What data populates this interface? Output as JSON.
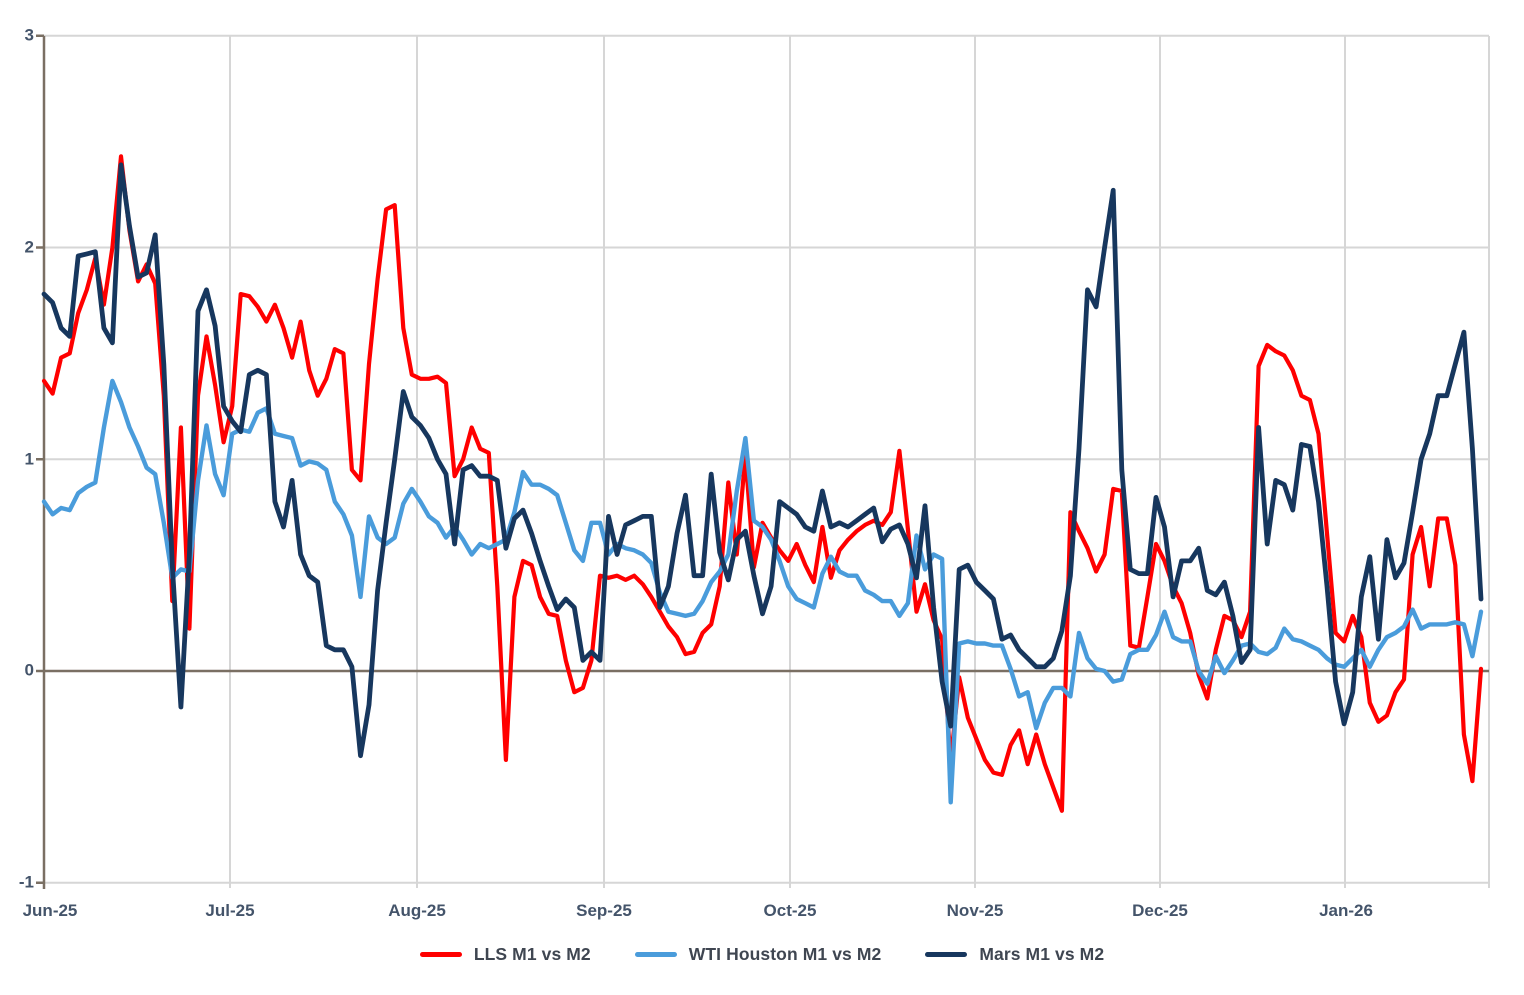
{
  "chart": {
    "y_ticks": [
      "3",
      "2",
      "1",
      "0",
      "-1"
    ],
    "x_labels": [
      "Jun-25",
      "Jul-25",
      "Aug-25",
      "Sep-25",
      "Oct-25",
      "Nov-25",
      "Dec-25",
      "Jan-26"
    ],
    "style": {
      "gridline_color": "#D6D6D6",
      "axis_color": "#7A6F63",
      "zero_line_color": "#7A6F63",
      "axis_label_color": "#44546A",
      "legend_text_color": "#3F4651",
      "background": "#FFFFFF"
    }
  },
  "chart_data": {
    "type": "line",
    "title": "",
    "xlabel": "",
    "ylabel": "",
    "ylim": [
      -1,
      3
    ],
    "x_axis_labels": [
      "Jun-25",
      "Jul-25",
      "Aug-25",
      "Sep-25",
      "Oct-25",
      "Nov-25",
      "Dec-25",
      "Jan-26"
    ],
    "grid": true,
    "legend_position": "bottom",
    "frequency": "daily (weekdays), Jun 2025 through late Jan 2026",
    "series": [
      {
        "name": "LLS M1 vs M2",
        "color": "#FF0000",
        "values": [
          1.37,
          1.31,
          1.48,
          1.5,
          1.69,
          1.8,
          1.95,
          1.73,
          2.0,
          2.43,
          2.08,
          1.84,
          1.92,
          1.83,
          1.3,
          0.33,
          1.15,
          0.2,
          1.3,
          1.58,
          1.35,
          1.08,
          1.25,
          1.78,
          1.77,
          1.72,
          1.65,
          1.73,
          1.62,
          1.48,
          1.65,
          1.42,
          1.3,
          1.38,
          1.52,
          1.5,
          0.95,
          0.9,
          1.45,
          1.85,
          2.18,
          2.2,
          1.62,
          1.4,
          1.38,
          1.38,
          1.39,
          1.36,
          0.92,
          1.0,
          1.15,
          1.05,
          1.03,
          0.4,
          -0.42,
          0.35,
          0.52,
          0.5,
          0.35,
          0.27,
          0.26,
          0.05,
          -0.1,
          -0.08,
          0.05,
          0.45,
          0.44,
          0.45,
          0.43,
          0.45,
          0.41,
          0.35,
          0.28,
          0.21,
          0.16,
          0.08,
          0.09,
          0.18,
          0.22,
          0.4,
          0.89,
          0.55,
          1.02,
          0.49,
          0.7,
          0.63,
          0.57,
          0.52,
          0.6,
          0.5,
          0.42,
          0.68,
          0.44,
          0.57,
          0.62,
          0.66,
          0.69,
          0.71,
          0.69,
          0.75,
          1.04,
          0.67,
          0.28,
          0.41,
          0.24,
          0.15,
          -0.43,
          -0.03,
          -0.22,
          -0.32,
          -0.42,
          -0.48,
          -0.49,
          -0.35,
          -0.28,
          -0.44,
          -0.3,
          -0.44,
          -0.55,
          -0.66,
          0.75,
          0.66,
          0.58,
          0.47,
          0.55,
          0.86,
          0.85,
          0.12,
          0.11,
          0.35,
          0.6,
          0.52,
          0.4,
          0.32,
          0.18,
          -0.02,
          -0.13,
          0.1,
          0.26,
          0.24,
          0.16,
          0.28,
          1.44,
          1.54,
          1.51,
          1.49,
          1.42,
          1.3,
          1.28,
          1.12,
          0.65,
          0.18,
          0.14,
          0.26,
          0.16,
          -0.15,
          -0.24,
          -0.21,
          -0.1,
          -0.04,
          0.55,
          0.68,
          0.4,
          0.72,
          0.72,
          0.5,
          -0.3,
          -0.52,
          0.01
        ]
      },
      {
        "name": "WTI Houston M1 vs M2",
        "color": "#4A9CDB",
        "values": [
          0.8,
          0.74,
          0.77,
          0.76,
          0.84,
          0.87,
          0.89,
          1.15,
          1.37,
          1.27,
          1.15,
          1.06,
          0.96,
          0.93,
          0.7,
          0.44,
          0.48,
          0.47,
          0.9,
          1.16,
          0.93,
          0.83,
          1.12,
          1.14,
          1.13,
          1.22,
          1.24,
          1.12,
          1.11,
          1.1,
          0.97,
          0.99,
          0.98,
          0.95,
          0.8,
          0.74,
          0.64,
          0.35,
          0.73,
          0.63,
          0.6,
          0.63,
          0.79,
          0.86,
          0.8,
          0.73,
          0.7,
          0.63,
          0.68,
          0.62,
          0.55,
          0.6,
          0.58,
          0.6,
          0.62,
          0.75,
          0.94,
          0.88,
          0.88,
          0.86,
          0.83,
          0.7,
          0.57,
          0.52,
          0.7,
          0.7,
          0.55,
          0.6,
          0.58,
          0.57,
          0.55,
          0.51,
          0.37,
          0.28,
          0.27,
          0.26,
          0.27,
          0.33,
          0.42,
          0.47,
          0.55,
          0.85,
          1.1,
          0.71,
          0.68,
          0.62,
          0.52,
          0.4,
          0.34,
          0.32,
          0.3,
          0.46,
          0.54,
          0.47,
          0.45,
          0.45,
          0.38,
          0.36,
          0.33,
          0.33,
          0.26,
          0.32,
          0.64,
          0.48,
          0.55,
          0.53,
          -0.62,
          0.13,
          0.14,
          0.13,
          0.13,
          0.12,
          0.12,
          0.01,
          -0.12,
          -0.1,
          -0.27,
          -0.15,
          -0.08,
          -0.08,
          -0.12,
          0.18,
          0.06,
          0.01,
          0.0,
          -0.05,
          -0.04,
          0.08,
          0.1,
          0.1,
          0.17,
          0.28,
          0.16,
          0.14,
          0.14,
          0.0,
          -0.06,
          0.07,
          -0.01,
          0.05,
          0.12,
          0.13,
          0.09,
          0.08,
          0.11,
          0.2,
          0.15,
          0.14,
          0.12,
          0.1,
          0.06,
          0.03,
          0.02,
          0.06,
          0.1,
          0.02,
          0.1,
          0.16,
          0.18,
          0.21,
          0.29,
          0.2,
          0.22,
          0.22,
          0.22,
          0.23,
          0.22,
          0.07,
          0.28
        ]
      },
      {
        "name": "Mars M1 vs M2",
        "color": "#17375E",
        "values": [
          1.78,
          1.74,
          1.62,
          1.58,
          1.96,
          1.97,
          1.98,
          1.62,
          1.55,
          2.39,
          2.1,
          1.86,
          1.88,
          2.06,
          1.45,
          0.5,
          -0.17,
          0.55,
          1.7,
          1.8,
          1.63,
          1.25,
          1.18,
          1.13,
          1.4,
          1.42,
          1.4,
          0.8,
          0.68,
          0.9,
          0.55,
          0.45,
          0.42,
          0.12,
          0.1,
          0.1,
          0.02,
          -0.4,
          -0.16,
          0.38,
          0.7,
          1.0,
          1.32,
          1.2,
          1.16,
          1.1,
          1.0,
          0.93,
          0.6,
          0.95,
          0.97,
          0.92,
          0.92,
          0.9,
          0.58,
          0.72,
          0.76,
          0.65,
          0.52,
          0.4,
          0.29,
          0.34,
          0.3,
          0.05,
          0.09,
          0.05,
          0.73,
          0.55,
          0.69,
          0.71,
          0.73,
          0.73,
          0.3,
          0.4,
          0.65,
          0.83,
          0.45,
          0.45,
          0.93,
          0.56,
          0.43,
          0.62,
          0.66,
          0.45,
          0.27,
          0.4,
          0.8,
          0.77,
          0.74,
          0.68,
          0.66,
          0.85,
          0.68,
          0.7,
          0.68,
          0.71,
          0.74,
          0.77,
          0.61,
          0.67,
          0.69,
          0.6,
          0.44,
          0.78,
          0.3,
          -0.05,
          -0.26,
          0.48,
          0.5,
          0.42,
          0.38,
          0.34,
          0.15,
          0.17,
          0.1,
          0.06,
          0.02,
          0.02,
          0.06,
          0.19,
          0.45,
          1.05,
          1.8,
          1.72,
          2.0,
          2.27,
          0.95,
          0.48,
          0.46,
          0.46,
          0.82,
          0.68,
          0.35,
          0.52,
          0.52,
          0.58,
          0.38,
          0.36,
          0.42,
          0.26,
          0.04,
          0.1,
          1.15,
          0.6,
          0.9,
          0.88,
          0.76,
          1.07,
          1.06,
          0.8,
          0.4,
          -0.05,
          -0.25,
          -0.1,
          0.35,
          0.54,
          0.15,
          0.62,
          0.44,
          0.51,
          0.75,
          1.0,
          1.12,
          1.3,
          1.3,
          1.45,
          1.6,
          1.05,
          0.34
        ]
      }
    ]
  }
}
